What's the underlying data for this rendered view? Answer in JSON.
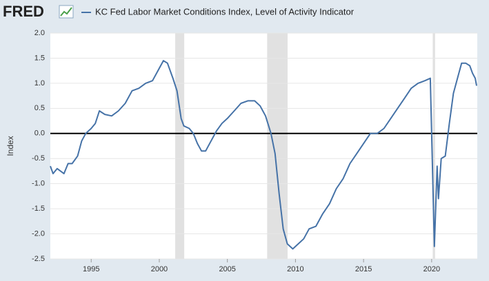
{
  "logo": "FRED",
  "chart_data": {
    "type": "line",
    "title": "KC Fed Labor Market Conditions Index, Level of Activity Indicator",
    "y_label": "Index",
    "xlim": [
      1992,
      2023.35
    ],
    "xticks": [
      1995,
      2000,
      2005,
      2010,
      2015,
      2020
    ],
    "ylim": [
      -2.5,
      2
    ],
    "yticks": [
      {
        "value": 2,
        "label": "2.0"
      },
      1.5,
      {
        "value": 1,
        "label": "1.0"
      },
      0.5,
      {
        "value": 0,
        "label": "0.0"
      },
      -0.5,
      {
        "value": -1,
        "label": "-1.0"
      },
      -1.5,
      {
        "value": -2,
        "label": "-2.0"
      },
      -2.5
    ],
    "grid": true,
    "reference_line": 0,
    "recessions": [
      [
        2001.17,
        2001.83
      ],
      [
        2007.92,
        2009.42
      ],
      [
        2020.08,
        2020.25
      ]
    ],
    "x": [
      1992.0,
      1992.2,
      1992.5,
      1993.0,
      1993.3,
      1993.6,
      1994.0,
      1994.3,
      1994.6,
      1995.0,
      1995.3,
      1995.6,
      1996.0,
      1996.5,
      1997.0,
      1997.5,
      1998.0,
      1998.5,
      1999.0,
      1999.5,
      2000.0,
      2000.3,
      2000.6,
      2001.0,
      2001.3,
      2001.6,
      2001.8,
      2002.2,
      2002.5,
      2002.8,
      2003.1,
      2003.4,
      2003.8,
      2004.2,
      2004.6,
      2005.0,
      2005.5,
      2006.0,
      2006.5,
      2007.0,
      2007.4,
      2007.8,
      2008.2,
      2008.5,
      2008.8,
      2009.1,
      2009.4,
      2009.8,
      2010.2,
      2010.6,
      2011.0,
      2011.5,
      2012.0,
      2012.5,
      2013.0,
      2013.5,
      2014.0,
      2014.5,
      2015.0,
      2015.5,
      2016.0,
      2016.5,
      2017.0,
      2017.5,
      2018.0,
      2018.5,
      2019.0,
      2019.5,
      2019.9,
      2020.2,
      2020.4,
      2020.5,
      2020.7,
      2021.0,
      2021.3,
      2021.6,
      2022.0,
      2022.2,
      2022.5,
      2022.8,
      2023.0,
      2023.2,
      2023.3
    ],
    "series": [
      {
        "name": "KC Fed Labor Market Conditions Index, Level of Activity Indicator",
        "color": "#4572a7",
        "values": [
          -0.65,
          -0.8,
          -0.7,
          -0.8,
          -0.6,
          -0.6,
          -0.45,
          -0.15,
          0.0,
          0.1,
          0.2,
          0.45,
          0.38,
          0.35,
          0.45,
          0.6,
          0.85,
          0.9,
          1.0,
          1.05,
          1.3,
          1.45,
          1.4,
          1.1,
          0.85,
          0.3,
          0.15,
          0.1,
          0.0,
          -0.2,
          -0.35,
          -0.35,
          -0.15,
          0.05,
          0.2,
          0.3,
          0.45,
          0.6,
          0.65,
          0.65,
          0.55,
          0.35,
          0.0,
          -0.4,
          -1.2,
          -1.9,
          -2.2,
          -2.3,
          -2.2,
          -2.1,
          -1.9,
          -1.85,
          -1.6,
          -1.4,
          -1.1,
          -0.9,
          -0.6,
          -0.4,
          -0.2,
          0.0,
          0.0,
          0.1,
          0.3,
          0.5,
          0.7,
          0.9,
          1.0,
          1.05,
          1.1,
          -2.25,
          -0.65,
          -1.3,
          -0.5,
          -0.45,
          0.2,
          0.8,
          1.2,
          1.4,
          1.4,
          1.35,
          1.2,
          1.1,
          0.95
        ]
      }
    ]
  }
}
